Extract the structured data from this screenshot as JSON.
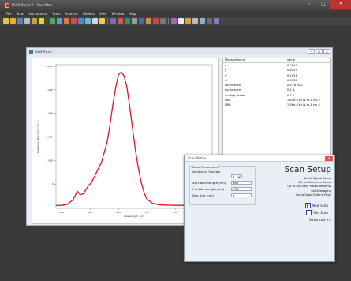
{
  "window": {
    "title": "NVIS Panel * - ServWeb"
  },
  "menu": [
    "File",
    "Scan",
    "Instruments",
    "Tools",
    "Analysis",
    "Utilities",
    "View",
    "Window",
    "Help"
  ],
  "toolbar_icons": [
    {
      "name": "new-icon",
      "color": "#e8c04a"
    },
    {
      "name": "open-icon",
      "color": "#e0b040"
    },
    {
      "name": "save-icon",
      "color": "#5b7fc1"
    },
    {
      "name": "copy-icon",
      "color": "#bbbbbb"
    },
    {
      "name": "paste-icon",
      "color": "#c9a04a"
    },
    {
      "name": "info-icon",
      "color": "#e8d040"
    },
    {
      "name": "run-icon",
      "color": "#4fae4f"
    },
    {
      "name": "chart-icon",
      "color": "#5aa0d8"
    },
    {
      "name": "measure-icon",
      "color": "#e07a30"
    },
    {
      "name": "table-icon",
      "color": "#c95050"
    },
    {
      "name": "graph-icon",
      "color": "#4a8ad0"
    },
    {
      "name": "spectrum-icon",
      "color": "#66b8e0"
    },
    {
      "name": "settings-icon",
      "color": "#d8d8d8"
    },
    {
      "name": "light-icon",
      "color": "#f0d040"
    },
    {
      "name": "filter-icon",
      "color": "#8a60c0"
    },
    {
      "name": "color-icon",
      "color": "#e05050"
    },
    {
      "name": "export-icon",
      "color": "#2f8f6f"
    },
    {
      "name": "print-icon",
      "color": "#9a9a9a"
    },
    {
      "name": "camera-icon",
      "color": "#3b6fb0"
    },
    {
      "name": "calibrate-icon",
      "color": "#d09040"
    },
    {
      "name": "target-icon",
      "color": "#c04848"
    },
    {
      "name": "dark-icon",
      "color": "#777777"
    },
    {
      "name": "pointer-icon",
      "color": "#b060c0"
    },
    {
      "name": "text-icon",
      "color": "#eeeeee"
    },
    {
      "name": "draw-icon",
      "color": "#d8a040"
    },
    {
      "name": "line-icon",
      "color": "#bbbbbb"
    },
    {
      "name": "zoom-icon",
      "color": "#90b0d0"
    },
    {
      "name": "layout-icon",
      "color": "#6a6a6a"
    },
    {
      "name": "window-icon",
      "color": "#8080c0"
    }
  ],
  "panel": {
    "title": "NVIS Panel *"
  },
  "chart_data": {
    "type": "line",
    "xlabel": "Wavelength - nm",
    "ylabel": "Radiance (W/sr cm-2 nm-1)",
    "x_ticks": [
      "400",
      "500",
      "600",
      "700",
      "800"
    ],
    "y_ticks": [
      "6.00E-",
      "4.00E-",
      "3.00E-",
      "2.00E-",
      "1.00E-",
      "0"
    ],
    "xlim": [
      380,
      930
    ],
    "ylim": [
      0,
      1.0
    ],
    "series": [
      {
        "color": "#e8102a",
        "x": [
          380,
          400,
          420,
          440,
          455,
          465,
          475,
          485,
          495,
          505,
          520,
          540,
          560,
          570,
          580,
          590,
          600,
          610,
          620,
          630,
          640,
          650,
          660,
          670,
          680,
          690,
          700,
          720,
          740,
          760,
          780,
          800,
          830,
          860,
          900,
          930
        ],
        "y": [
          0.02,
          0.021,
          0.028,
          0.06,
          0.12,
          0.095,
          0.1,
          0.13,
          0.16,
          0.18,
          0.24,
          0.32,
          0.46,
          0.58,
          0.72,
          0.84,
          0.93,
          0.95,
          0.92,
          0.84,
          0.7,
          0.55,
          0.4,
          0.28,
          0.18,
          0.11,
          0.065,
          0.035,
          0.026,
          0.023,
          0.022,
          0.021,
          0.021,
          0.021,
          0.02,
          0.02
        ]
      }
    ]
  },
  "table": {
    "headers": [
      "Measurement",
      "Value"
    ],
    "rows": [
      [
        "x",
        "0.2643"
      ],
      [
        "y",
        "0.6525"
      ],
      [
        "u'",
        "0.1051"
      ],
      [
        "v'",
        "0.5838"
      ],
      [
        "Luminance",
        "0.4 cd m-2"
      ],
      [
        "Luminance",
        "0.1 fL"
      ],
      [
        "Scaling Factor",
        "0.1 fL"
      ],
      [
        "NRa",
        "1.81e-010 W sr-1 cm-2"
      ],
      [
        "NRb",
        "1.56e-010 W sr-1 cm-2"
      ]
    ]
  },
  "dialog": {
    "title": "Scan Setup",
    "big_title": "Scan Setup",
    "group_label": "Scan Parameters",
    "num_spectra_label": "Number of Spectra",
    "num_spectra": "1",
    "start_label": "Start Wavelength (nm)",
    "start_value": "380",
    "end_label": "End Wavelength (nm)",
    "end_value": "930",
    "step_label": "Step Size (nm)",
    "step_value": "5",
    "links": [
      "Go to Signal Setup",
      "Go to Reference Setup",
      "Go to Auxiliary Measurements",
      "Set Averaging",
      "Go to Scan Outline Page"
    ],
    "new_scan": "New Scan",
    "add_scan": "Add Scan",
    "advanced": "Advanced >>"
  }
}
